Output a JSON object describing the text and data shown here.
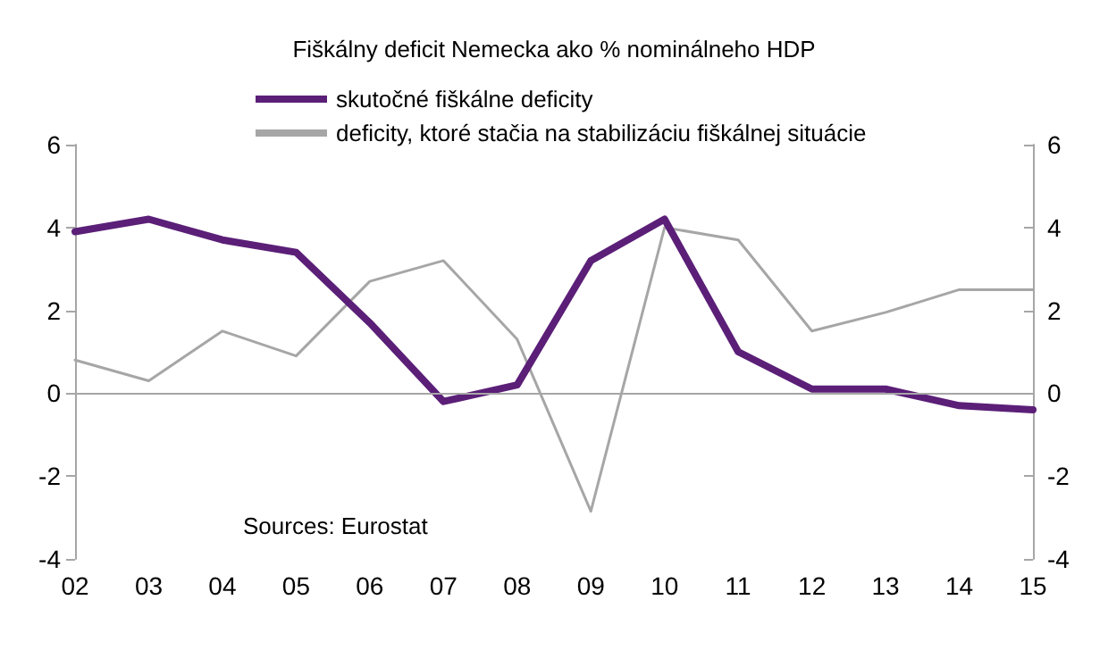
{
  "chart_data": {
    "type": "line",
    "title": "Fiškálny deficit Nemecka ako % nominálneho HDP",
    "categories": [
      "02",
      "03",
      "04",
      "05",
      "06",
      "07",
      "08",
      "09",
      "10",
      "11",
      "12",
      "13",
      "14",
      "15"
    ],
    "series": [
      {
        "name": "skutočné fiškálne deficity",
        "color": "#5b1f78",
        "values": [
          3.9,
          4.2,
          3.7,
          3.4,
          1.7,
          -0.2,
          0.2,
          3.2,
          4.2,
          1.0,
          0.1,
          0.1,
          -0.3,
          -0.4
        ]
      },
      {
        "name": "deficity, ktoré stačia na stabilizáciu fiškálnej situácie",
        "color": "#a6a6a6",
        "axis": "y2",
        "values": [
          0.8,
          0.3,
          1.5,
          0.9,
          2.7,
          3.2,
          1.3,
          -2.85,
          4.0,
          3.7,
          1.5,
          1.95,
          2.5,
          2.5
        ]
      }
    ],
    "ylim": [
      -4,
      6
    ],
    "yticks": [
      -4,
      -2,
      0,
      2,
      4,
      6
    ],
    "y2lim": [
      -4,
      6
    ],
    "y2ticks": [
      -4,
      -2,
      0,
      2,
      4,
      6
    ],
    "ref_lines": [
      {
        "axis": "y",
        "value": 0,
        "color": "#a6a6a6"
      }
    ],
    "annotations": [
      "Sources: Eurostat"
    ],
    "legend": "top left",
    "grid": false,
    "marker": "none"
  }
}
